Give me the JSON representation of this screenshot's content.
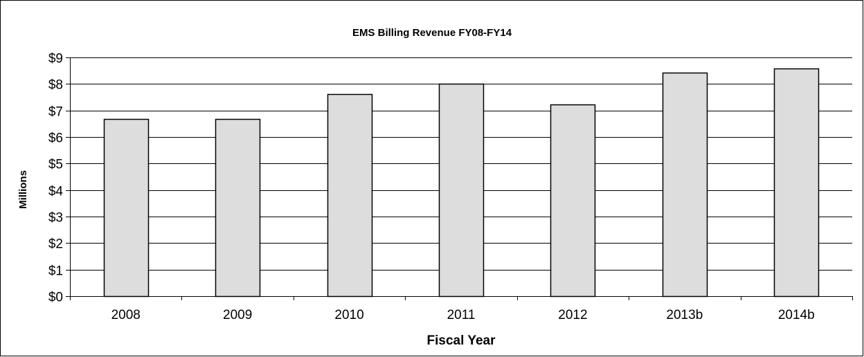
{
  "chart_data": {
    "type": "bar",
    "title": "EMS Billing Revenue FY08-FY14",
    "xlabel": "Fiscal Year",
    "ylabel": "Millions",
    "categories": [
      "2008",
      "2009",
      "2010",
      "2011",
      "2012",
      "2013b",
      "2014b"
    ],
    "values": [
      6.67,
      6.67,
      7.62,
      8.02,
      7.22,
      8.42,
      8.58
    ],
    "ylim": [
      0,
      9
    ],
    "yticks": [
      0,
      1,
      2,
      3,
      4,
      5,
      6,
      7,
      8,
      9
    ],
    "ytick_labels": [
      "$0",
      "$1",
      "$2",
      "$3",
      "$4",
      "$5",
      "$6",
      "$7",
      "$8",
      "$9"
    ],
    "grid": true,
    "legend": "none",
    "colors": {
      "bar_fill": "#dddddd",
      "bar_stroke": "#000000",
      "grid": "#000000"
    }
  }
}
